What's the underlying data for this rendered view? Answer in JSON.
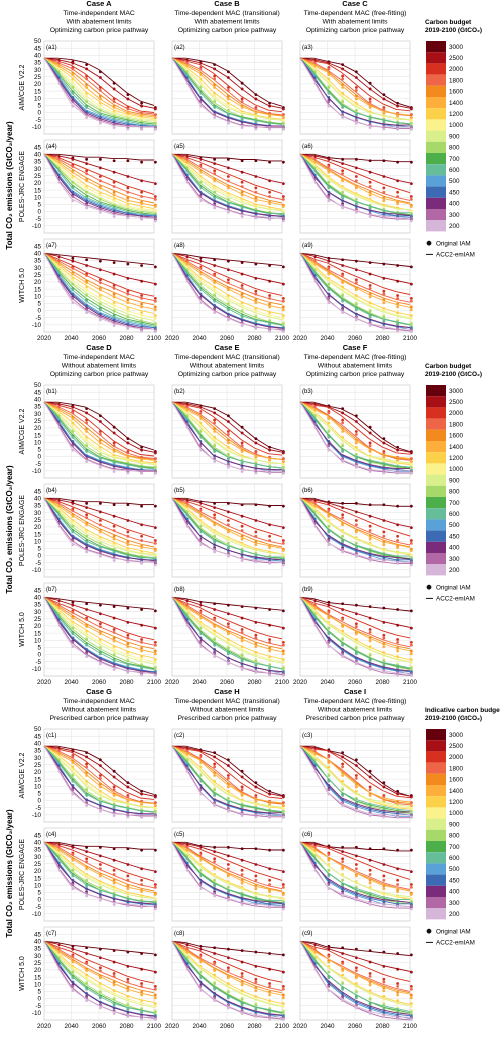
{
  "figure": {
    "y_axis_title": "Total CO₂ emissions (GtCO₂/year)",
    "models": [
      "AIM/CGE V2.2",
      "POLES-JRC ENGAGE",
      "WITCH 5.0"
    ],
    "x_ticks": [
      2020,
      2040,
      2060,
      2080,
      2100
    ],
    "y_ticks": [
      -10,
      -5,
      0,
      5,
      10,
      15,
      20,
      25,
      30,
      35,
      40,
      45,
      50
    ],
    "grid": true
  },
  "groups": [
    {
      "prefix": "a",
      "legend_title": [
        "Carbon budget",
        "2019-2100 (GtCO₂)"
      ],
      "cases": [
        {
          "title": "Case A",
          "lines": [
            "Time-independent MAC",
            "With abatement limits",
            "Optimizing carbon price pathway"
          ]
        },
        {
          "title": "Case B",
          "lines": [
            "Time-dependent MAC (transitional)",
            "With abatement limits",
            "Optimizing carbon price pathway"
          ]
        },
        {
          "title": "Case C",
          "lines": [
            "Time-dependent MAC (free-fitting)",
            "With abatement limits",
            "Optimizing carbon price pathway"
          ]
        }
      ]
    },
    {
      "prefix": "b",
      "legend_title": [
        "Carbon budget",
        "2019-2100 (GtCO₂)"
      ],
      "cases": [
        {
          "title": "Case D",
          "lines": [
            "Time-independent MAC",
            "Without abatement limits",
            "Optimizing carbon price pathway"
          ]
        },
        {
          "title": "Case E",
          "lines": [
            "Time-dependent MAC (transitional)",
            "Without abatement limits",
            "Optimizing carbon price pathway"
          ]
        },
        {
          "title": "Case F",
          "lines": [
            "Time-dependent MAC (free-fitting)",
            "Without abatement limits",
            "Optimizing carbon price pathway"
          ]
        }
      ]
    },
    {
      "prefix": "c",
      "legend_title": [
        "Indicative carbon budget",
        "2019-2100 (GtCO₂)"
      ],
      "cases": [
        {
          "title": "Case G",
          "lines": [
            "Time-independent MAC",
            "Without abatement limits",
            "Prescribed carbon price pathway"
          ]
        },
        {
          "title": "Case H",
          "lines": [
            "Time-dependent MAC (transitional)",
            "Without abatement limits",
            "Prescribed carbon price pathway"
          ]
        },
        {
          "title": "Case I",
          "lines": [
            "Time-dependent MAC (free-fitting)",
            "Without abatement limits",
            "Prescribed carbon price pathway"
          ]
        }
      ]
    }
  ],
  "legend": {
    "budgets": [
      3000,
      2500,
      2000,
      1800,
      1600,
      1400,
      1200,
      1000,
      900,
      800,
      700,
      600,
      500,
      450,
      400,
      300,
      200
    ],
    "colors": [
      "#67000d",
      "#a50f15",
      "#d7301f",
      "#ef6548",
      "#f28a1e",
      "#fdae3b",
      "#fdd049",
      "#fcf28c",
      "#d9ef8b",
      "#a6d96a",
      "#4daf4a",
      "#66bd9a",
      "#5aa1d8",
      "#3c6ab3",
      "#7a2c7a",
      "#b268a6",
      "#d6b6d8"
    ],
    "original_label": "Original IAM",
    "emulator_label": "ACC2-emIAM"
  },
  "chart_data": {
    "type": "line",
    "x": [
      2020,
      2030,
      2040,
      2050,
      2060,
      2070,
      2080,
      2090,
      2100
    ],
    "ylim": [
      -15,
      50
    ],
    "xlim": [
      2020,
      2100
    ],
    "note_models": {
      "AIM/CGE V2.2": {
        "series": [
          {
            "name": "3000",
            "values": [
              38,
              38,
              37,
              35,
              30,
              22,
              14,
              8,
              5
            ]
          },
          {
            "name": "2500",
            "values": [
              38,
              37,
              35,
              31,
              25,
              17,
              10,
              5,
              3
            ]
          },
          {
            "name": "2000",
            "values": [
              38,
              36,
              33,
              27,
              19,
              11,
              5,
              1,
              0
            ]
          },
          {
            "name": "1800",
            "values": [
              38,
              35,
              31,
              24,
              16,
              8,
              3,
              0,
              -1
            ]
          },
          {
            "name": "1600",
            "values": [
              38,
              34,
              29,
              21,
              13,
              6,
              1,
              -1,
              -2
            ]
          },
          {
            "name": "1400",
            "values": [
              38,
              33,
              27,
              18,
              10,
              4,
              0,
              -2,
              -3
            ]
          },
          {
            "name": "1200",
            "values": [
              38,
              32,
              25,
              15,
              8,
              2,
              -1,
              -3,
              -4
            ]
          },
          {
            "name": "1000",
            "values": [
              38,
              31,
              22,
              12,
              5,
              0,
              -2,
              -4,
              -5
            ]
          },
          {
            "name": "900",
            "values": [
              38,
              30,
              20,
              10,
              3,
              -1,
              -3,
              -5,
              -6
            ]
          },
          {
            "name": "800",
            "values": [
              38,
              29,
              18,
              8,
              2,
              -2,
              -4,
              -6,
              -7
            ]
          },
          {
            "name": "700",
            "values": [
              38,
              28,
              16,
              6,
              0,
              -3,
              -5,
              -7,
              -8
            ]
          },
          {
            "name": "600",
            "values": [
              38,
              27,
              14,
              4,
              -1,
              -4,
              -6,
              -8,
              -9
            ]
          },
          {
            "name": "500",
            "values": [
              38,
              26,
              12,
              2,
              -2,
              -5,
              -7,
              -9,
              -9
            ]
          },
          {
            "name": "450",
            "values": [
              38,
              25,
              11,
              1,
              -3,
              -6,
              -8,
              -9,
              -10
            ]
          },
          {
            "name": "400",
            "values": [
              38,
              24,
              10,
              0,
              -4,
              -7,
              -9,
              -10,
              -10
            ]
          },
          {
            "name": "300",
            "values": [
              38,
              23,
              8,
              -1,
              -5,
              -8,
              -9,
              -10,
              -10
            ]
          },
          {
            "name": "200",
            "values": [
              38,
              22,
              6,
              -2,
              -6,
              -9,
              -10,
              -10,
              -10
            ]
          }
        ]
      },
      "POLES-JRC ENGAGE": {
        "series": [
          {
            "name": "3000",
            "values": [
              40,
              40,
              39,
              38,
              38,
              37,
              37,
              36,
              36
            ]
          },
          {
            "name": "2500",
            "values": [
              40,
              39,
              37,
              34,
              31,
              28,
              25,
              22,
              20
            ]
          },
          {
            "name": "2000",
            "values": [
              40,
              38,
              34,
              30,
              26,
              22,
              18,
              15,
              12
            ]
          },
          {
            "name": "1800",
            "values": [
              40,
              37,
              32,
              27,
              22,
              18,
              14,
              11,
              9
            ]
          },
          {
            "name": "1600",
            "values": [
              40,
              36,
              30,
              24,
              19,
              15,
              11,
              8,
              6
            ]
          },
          {
            "name": "1400",
            "values": [
              40,
              35,
              28,
              22,
              17,
              12,
              8,
              6,
              4
            ]
          },
          {
            "name": "1200",
            "values": [
              40,
              34,
              26,
              19,
              14,
              10,
              6,
              4,
              2
            ]
          },
          {
            "name": "1000",
            "values": [
              40,
              33,
              24,
              17,
              12,
              8,
              4,
              2,
              1
            ]
          },
          {
            "name": "900",
            "values": [
              40,
              32,
              22,
              15,
              10,
              6,
              3,
              1,
              0
            ]
          },
          {
            "name": "800",
            "values": [
              40,
              31,
              21,
              14,
              9,
              5,
              2,
              0,
              -1
            ]
          },
          {
            "name": "700",
            "values": [
              40,
              30,
              19,
              12,
              7,
              4,
              1,
              -1,
              -2
            ]
          },
          {
            "name": "600",
            "values": [
              40,
              29,
              17,
              10,
              6,
              3,
              0,
              -2,
              -2
            ]
          },
          {
            "name": "500",
            "values": [
              40,
              27,
              15,
              9,
              5,
              2,
              -1,
              -2,
              -3
            ]
          },
          {
            "name": "450",
            "values": [
              40,
              26,
              14,
              8,
              4,
              1,
              -1,
              -3,
              -3
            ]
          },
          {
            "name": "400",
            "values": [
              40,
              25,
              13,
              7,
              3,
              0,
              -2,
              -3,
              -4
            ]
          },
          {
            "name": "300",
            "values": [
              40,
              23,
              11,
              5,
              2,
              -1,
              -3,
              -4,
              -4
            ]
          },
          {
            "name": "200",
            "values": [
              40,
              22,
              9,
              4,
              1,
              -2,
              -3,
              -4,
              -5
            ]
          }
        ]
      },
      "WITCH 5.0": {
        "series": [
          {
            "name": "3000",
            "values": [
              40,
              39,
              38,
              37,
              36,
              35,
              34,
              33,
              32
            ]
          },
          {
            "name": "2500",
            "values": [
              40,
              38,
              35,
              32,
              29,
              26,
              23,
              21,
              19
            ]
          },
          {
            "name": "2000",
            "values": [
              40,
              36,
              32,
              27,
              23,
              19,
              15,
              12,
              10
            ]
          },
          {
            "name": "1800",
            "values": [
              40,
              35,
              30,
              25,
              20,
              16,
              12,
              9,
              7
            ]
          },
          {
            "name": "1600",
            "values": [
              40,
              34,
              28,
              22,
              17,
              13,
              9,
              6,
              4
            ]
          },
          {
            "name": "1400",
            "values": [
              40,
              33,
              26,
              20,
              15,
              10,
              6,
              3,
              1
            ]
          },
          {
            "name": "1200",
            "values": [
              40,
              32,
              24,
              18,
              12,
              7,
              3,
              0,
              -2
            ]
          },
          {
            "name": "1000",
            "values": [
              40,
              31,
              22,
              15,
              9,
              4,
              0,
              -3,
              -5
            ]
          },
          {
            "name": "900",
            "values": [
              40,
              30,
              20,
              13,
              7,
              2,
              -2,
              -5,
              -7
            ]
          },
          {
            "name": "800",
            "values": [
              40,
              29,
              19,
              11,
              5,
              0,
              -4,
              -7,
              -9
            ]
          },
          {
            "name": "700",
            "values": [
              40,
              28,
              17,
              9,
              3,
              -2,
              -6,
              -8,
              -10
            ]
          },
          {
            "name": "600",
            "values": [
              40,
              27,
              15,
              7,
              1,
              -4,
              -7,
              -9,
              -11
            ]
          },
          {
            "name": "500",
            "values": [
              40,
              26,
              13,
              5,
              -1,
              -5,
              -8,
              -10,
              -12
            ]
          },
          {
            "name": "450",
            "values": [
              40,
              25,
              12,
              4,
              -2,
              -6,
              -9,
              -11,
              -12
            ]
          },
          {
            "name": "400",
            "values": [
              40,
              24,
              11,
              3,
              -3,
              -7,
              -10,
              -12,
              -13
            ]
          },
          {
            "name": "300",
            "values": [
              40,
              23,
              9,
              1,
              -4,
              -8,
              -11,
              -12,
              -13
            ]
          },
          {
            "name": "200",
            "values": [
              40,
              22,
              7,
              0,
              -5,
              -9,
              -11,
              -13,
              -13
            ]
          }
        ]
      }
    }
  }
}
